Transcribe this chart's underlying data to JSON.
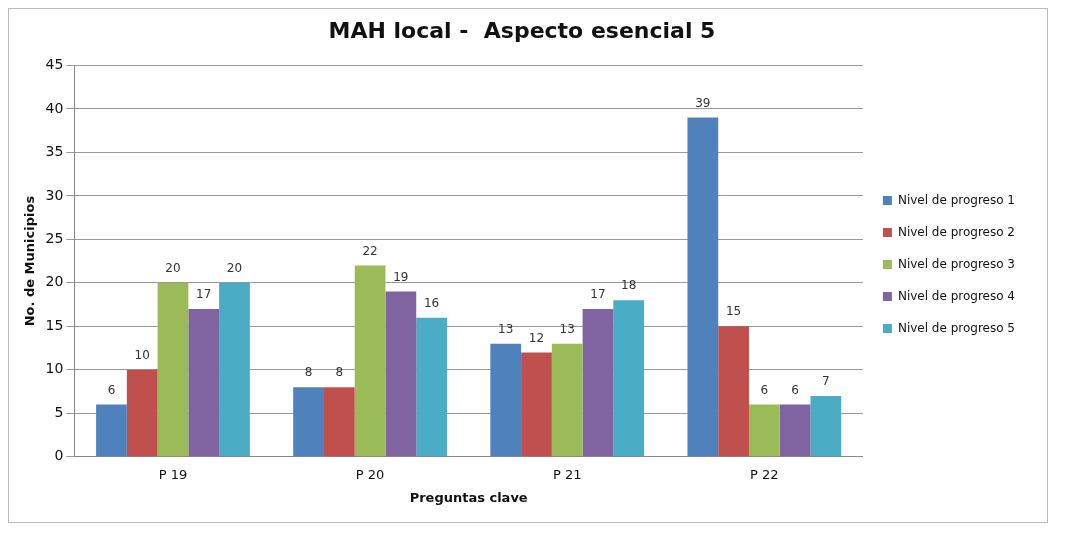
{
  "chart_data": {
    "type": "bar",
    "title": "MAH local -  Aspecto esencial 5",
    "xlabel": "Preguntas clave",
    "ylabel": "No. de Municipios",
    "categories": [
      "P 19",
      "P 20",
      "P 21",
      "P 22"
    ],
    "series": [
      {
        "name": "Nivel de progreso 1",
        "color": "#4f81bd",
        "values": [
          6,
          8,
          13,
          39
        ]
      },
      {
        "name": "Nivel de progreso 2",
        "color": "#c0504d",
        "values": [
          10,
          8,
          12,
          15
        ]
      },
      {
        "name": "Nivel de progreso 3",
        "color": "#9bbb59",
        "values": [
          20,
          22,
          13,
          6
        ]
      },
      {
        "name": "Nivel de progreso 4",
        "color": "#8064a2",
        "values": [
          17,
          19,
          17,
          6
        ]
      },
      {
        "name": "Nivel de progreso 5",
        "color": "#4bacc6",
        "values": [
          20,
          16,
          18,
          7
        ]
      }
    ],
    "ylim": [
      0,
      45
    ],
    "yticks": [
      0,
      5,
      10,
      15,
      20,
      25,
      30,
      35,
      40,
      45
    ],
    "grid": "y",
    "legend": "right",
    "data_labels": true
  }
}
